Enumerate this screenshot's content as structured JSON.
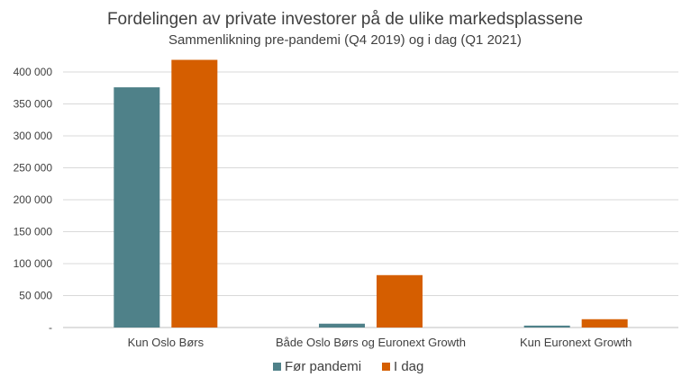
{
  "chart_data": {
    "type": "bar",
    "title": "Fordelingen av private investorer på de ulike markedsplassene",
    "subtitle": "Sammenlikning pre-pandemi (Q4 2019) og i dag (Q1 2021)",
    "categories": [
      "Kun Oslo Børs",
      "Både Oslo Børs og Euronext Growth",
      "Kun Euronext Growth"
    ],
    "series": [
      {
        "name": "Før pandemi",
        "color": "#4f8189",
        "values": [
          376000,
          6000,
          3000
        ]
      },
      {
        "name": "I dag",
        "color": "#d55e00",
        "values": [
          419000,
          82000,
          13000
        ]
      }
    ],
    "ylim": [
      0,
      400000
    ],
    "yticks": [
      0,
      50000,
      100000,
      150000,
      200000,
      250000,
      300000,
      350000,
      400000
    ],
    "ytick_labels": [
      "-",
      "50 000",
      "100 000",
      "150 000",
      "200 000",
      "250 000",
      "300 000",
      "350 000",
      "400 000"
    ],
    "grid": true,
    "legend_position": "bottom"
  }
}
